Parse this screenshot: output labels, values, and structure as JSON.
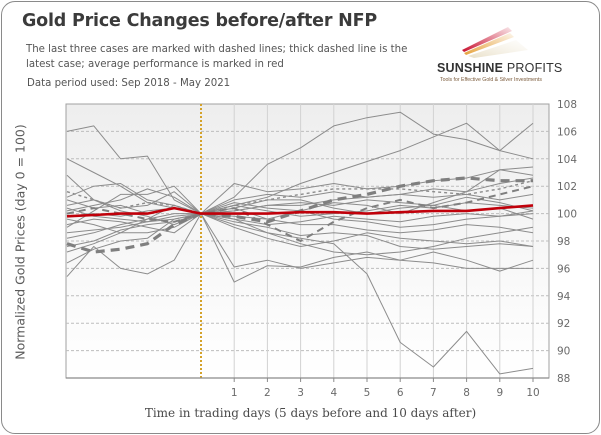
{
  "chart_data": {
    "type": "line",
    "title": "Gold Price Changes before/after NFP",
    "subtitle": "The last three cases are marked with dashed lines; thick dashed line is the latest case; average performance is marked in red",
    "data_period": "Data period used: Sep 2018 - May 2021",
    "xlabel": "Time in trading days (5 days before and 10 days after)",
    "ylabel": "Normalized Gold Prices (day 0 = 100)",
    "x": [
      -5,
      -4,
      -3,
      -2,
      -1,
      0,
      1,
      2,
      3,
      4,
      5,
      6,
      7,
      8,
      9,
      10
    ],
    "x_tick_labels": [
      "1",
      "2",
      "3",
      "4",
      "5",
      "6",
      "7",
      "8",
      "9",
      "10"
    ],
    "x_tick_values": [
      1,
      2,
      3,
      4,
      5,
      6,
      7,
      8,
      9,
      10
    ],
    "ylim": [
      88,
      108
    ],
    "y_ticks": [
      88,
      90,
      92,
      94,
      96,
      98,
      100,
      102,
      104,
      106,
      108
    ],
    "y_axis_position": "right",
    "event_marker": {
      "x": 0,
      "style": "dotted",
      "color": "#d4a22a"
    },
    "grid": true,
    "colors": {
      "series": "#8c8c8c",
      "average": "#c0000a",
      "event_line": "#d4a22a",
      "background_top": "#efefef",
      "background_bottom": "#ffffff"
    },
    "series": [
      {
        "name": "case-01",
        "style": "solid",
        "values": [
          106.0,
          106.4,
          104.0,
          104.2,
          101.0,
          100,
          95.0,
          96.2,
          96.1,
          96.8,
          97.2,
          96.6,
          96.4,
          96.0,
          96.0,
          96.0
        ]
      },
      {
        "name": "case-02",
        "style": "solid",
        "values": [
          104.0,
          103.0,
          102.0,
          100.8,
          100.4,
          100,
          101.2,
          103.6,
          104.8,
          106.4,
          107.0,
          107.4,
          105.8,
          105.4,
          104.6,
          104.0
        ]
      },
      {
        "name": "case-03",
        "style": "solid",
        "values": [
          102.8,
          101.0,
          100.2,
          99.8,
          99.2,
          100,
          102.2,
          101.6,
          101.8,
          102.2,
          101.8,
          102.0,
          102.4,
          102.6,
          103.2,
          102.8
        ]
      },
      {
        "name": "case-04",
        "style": "solid",
        "values": [
          101.2,
          102.0,
          102.2,
          101.0,
          100.6,
          100,
          99.6,
          98.6,
          98.2,
          97.8,
          95.6,
          90.6,
          88.8,
          91.4,
          88.3,
          88.7
        ]
      },
      {
        "name": "case-05",
        "style": "solid",
        "values": [
          99.0,
          100.2,
          101.4,
          101.4,
          102.0,
          100,
          96.1,
          96.6,
          96.0,
          96.4,
          96.8,
          96.6,
          97.2,
          96.6,
          95.8,
          96.6
        ]
      },
      {
        "name": "case-06",
        "style": "solid",
        "values": [
          95.4,
          97.6,
          96.0,
          95.6,
          96.6,
          100,
          100.6,
          101.2,
          102.2,
          103.0,
          103.8,
          104.6,
          105.6,
          106.6,
          104.6,
          106.6
        ]
      },
      {
        "name": "case-07",
        "style": "solid",
        "values": [
          100.6,
          101.0,
          100.4,
          100.6,
          101.6,
          100,
          100.4,
          101.0,
          101.0,
          100.4,
          100.0,
          100.4,
          100.6,
          101.2,
          100.8,
          100.2
        ]
      },
      {
        "name": "case-08",
        "style": "solid",
        "values": [
          99.6,
          99.2,
          98.6,
          99.6,
          100.0,
          100,
          99.0,
          98.2,
          97.6,
          98.0,
          98.6,
          98.2,
          98.0,
          97.8,
          98.0,
          97.6
        ]
      },
      {
        "name": "case-09",
        "style": "solid",
        "values": [
          98.2,
          98.6,
          99.2,
          99.6,
          100.6,
          100,
          100.8,
          100.4,
          100.2,
          99.6,
          99.4,
          99.0,
          99.2,
          99.6,
          99.8,
          100.0
        ]
      },
      {
        "name": "case-10",
        "style": "solid",
        "values": [
          100.2,
          100.6,
          101.0,
          101.8,
          101.2,
          100,
          101.0,
          101.4,
          101.2,
          101.6,
          101.2,
          101.4,
          101.8,
          101.6,
          102.2,
          102.6
        ]
      },
      {
        "name": "case-11",
        "style": "solid",
        "values": [
          99.2,
          99.6,
          99.4,
          99.0,
          98.6,
          100,
          99.4,
          99.0,
          98.4,
          98.6,
          98.4,
          97.6,
          97.4,
          97.6,
          97.8,
          97.6
        ]
      },
      {
        "name": "case-12",
        "style": "solid",
        "values": [
          97.2,
          97.8,
          98.6,
          98.6,
          99.0,
          100,
          100.2,
          100.6,
          100.6,
          101.0,
          101.2,
          101.4,
          101.2,
          101.4,
          101.0,
          101.4
        ]
      },
      {
        "name": "case-13",
        "style": "solid",
        "values": [
          101.0,
          100.4,
          100.6,
          100.0,
          100.4,
          100,
          99.8,
          99.6,
          99.2,
          99.2,
          98.8,
          98.6,
          98.8,
          99.2,
          99.0,
          98.6
        ]
      },
      {
        "name": "case-14",
        "style": "solid",
        "values": [
          96.4,
          97.4,
          98.0,
          98.2,
          99.6,
          100,
          100.4,
          99.6,
          100.2,
          100.8,
          100.6,
          100.0,
          100.8,
          101.6,
          103.2,
          103.4
        ]
      },
      {
        "name": "case-15",
        "style": "solid",
        "values": [
          100.4,
          99.8,
          99.6,
          99.4,
          99.8,
          100,
          100.6,
          100.2,
          99.8,
          100.0,
          100.2,
          100.6,
          100.4,
          100.8,
          100.6,
          100.4
        ]
      },
      {
        "name": "case-16",
        "style": "solid",
        "values": [
          98.6,
          98.8,
          99.0,
          99.4,
          99.6,
          100,
          99.6,
          99.2,
          99.4,
          99.8,
          99.6,
          99.4,
          99.8,
          100.0,
          99.8,
          100.2
        ]
      },
      {
        "name": "case-17",
        "style": "solid",
        "values": [
          99.8,
          100.0,
          99.8,
          100.2,
          100.4,
          100,
          100.2,
          100.6,
          100.8,
          100.6,
          101.0,
          100.8,
          100.6,
          100.2,
          100.4,
          99.6
        ]
      },
      {
        "name": "case-18",
        "style": "solid",
        "values": [
          97.6,
          98.0,
          98.8,
          99.2,
          99.4,
          100,
          99.2,
          98.6,
          97.8,
          97.2,
          97.0,
          97.2,
          97.6,
          98.2,
          98.6,
          99.0
        ]
      },
      {
        "name": "case-dashed-1",
        "style": "thin-dashed",
        "values": [
          101.6,
          101.0,
          100.4,
          100.8,
          100.6,
          100,
          100.6,
          101.0,
          101.4,
          101.8,
          101.8,
          101.8,
          101.6,
          101.4,
          101.8,
          102.4
        ]
      },
      {
        "name": "case-dashed-2",
        "style": "medium-dashed",
        "values": [
          100.0,
          100.4,
          100.0,
          99.6,
          99.4,
          100,
          100.4,
          99.2,
          98.0,
          99.4,
          100.4,
          101.0,
          100.4,
          100.8,
          101.4,
          102.0
        ]
      },
      {
        "name": "case-latest",
        "style": "thick-dashed",
        "values": [
          97.8,
          97.2,
          97.4,
          97.8,
          99.2,
          100,
          99.8,
          99.4,
          100.2,
          101.0,
          101.4,
          102.0,
          102.4,
          102.6,
          102.4,
          102.4
        ]
      }
    ],
    "average": {
      "name": "Average",
      "values": [
        99.8,
        99.9,
        100.0,
        100.0,
        100.4,
        100,
        100.0,
        100.0,
        100.1,
        100.1,
        100.0,
        100.1,
        100.2,
        100.2,
        100.4,
        100.6
      ]
    }
  },
  "logo": {
    "name_bold": "SUNSHINE",
    "name_light": "PROFITS",
    "tagline": "Tools for Effective Gold & Silver Investments"
  }
}
